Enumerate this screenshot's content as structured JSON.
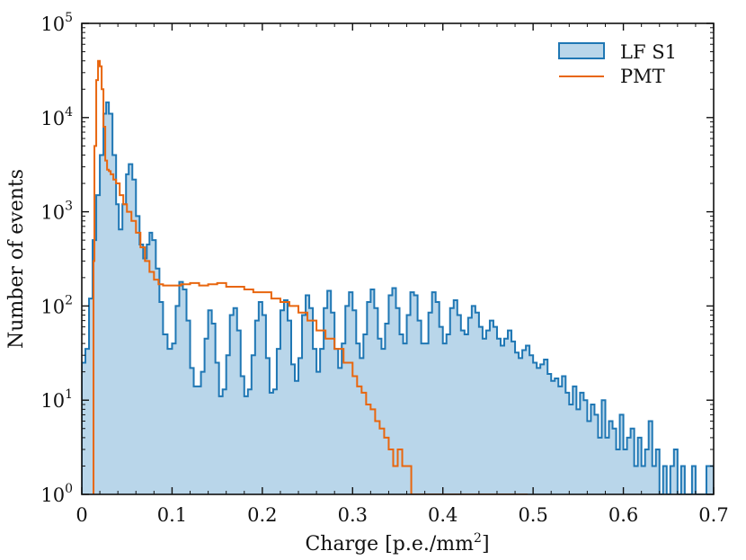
{
  "chart_data": {
    "type": "histogram",
    "title": "",
    "xlabel": "Charge [p.e./mm",
    "xlabel_sup": "2",
    "xlabel_suffix": "]",
    "ylabel": "Number of events",
    "xlim": [
      0,
      0.7
    ],
    "ylim": [
      1,
      100000
    ],
    "yscale": "log",
    "grid": false,
    "legend_position": "top-right",
    "x_ticks": [
      {
        "value": 0,
        "label": "0"
      },
      {
        "value": 0.1,
        "label": "0.1"
      },
      {
        "value": 0.2,
        "label": "0.2"
      },
      {
        "value": 0.3,
        "label": "0.3"
      },
      {
        "value": 0.4,
        "label": "0.4"
      },
      {
        "value": 0.5,
        "label": "0.5"
      },
      {
        "value": 0.6,
        "label": "0.6"
      },
      {
        "value": 0.7,
        "label": "0.7"
      }
    ],
    "y_ticks": [
      {
        "value": 1,
        "base": "10",
        "exp": "0"
      },
      {
        "value": 10,
        "base": "10",
        "exp": "1"
      },
      {
        "value": 100,
        "base": "10",
        "exp": "2"
      },
      {
        "value": 1000,
        "base": "10",
        "exp": "3"
      },
      {
        "value": 10000,
        "base": "10",
        "exp": "4"
      },
      {
        "value": 100000,
        "base": "10",
        "exp": "5"
      }
    ],
    "series": [
      {
        "name": "LF S1",
        "color": "#1f77b4",
        "fill": "#b9d6ea",
        "filled": true,
        "points": [
          [
            0,
            25
          ],
          [
            0.004,
            35
          ],
          [
            0.008,
            120
          ],
          [
            0.012,
            500
          ],
          [
            0.016,
            1500
          ],
          [
            0.02,
            4000
          ],
          [
            0.024,
            11000
          ],
          [
            0.027,
            14500
          ],
          [
            0.03,
            11000
          ],
          [
            0.034,
            4000
          ],
          [
            0.038,
            1200
          ],
          [
            0.041,
            650
          ],
          [
            0.045,
            1200
          ],
          [
            0.049,
            2500
          ],
          [
            0.052,
            3200
          ],
          [
            0.056,
            2200
          ],
          [
            0.06,
            900
          ],
          [
            0.064,
            450
          ],
          [
            0.068,
            320
          ],
          [
            0.072,
            450
          ],
          [
            0.075,
            600
          ],
          [
            0.078,
            500
          ],
          [
            0.082,
            250
          ],
          [
            0.086,
            110
          ],
          [
            0.09,
            50
          ],
          [
            0.095,
            35
          ],
          [
            0.1,
            40
          ],
          [
            0.104,
            100
          ],
          [
            0.108,
            180
          ],
          [
            0.112,
            150
          ],
          [
            0.116,
            70
          ],
          [
            0.12,
            22
          ],
          [
            0.124,
            14
          ],
          [
            0.128,
            14
          ],
          [
            0.132,
            20
          ],
          [
            0.136,
            45
          ],
          [
            0.14,
            90
          ],
          [
            0.144,
            65
          ],
          [
            0.148,
            25
          ],
          [
            0.152,
            11
          ],
          [
            0.156,
            13
          ],
          [
            0.16,
            30
          ],
          [
            0.164,
            80
          ],
          [
            0.168,
            95
          ],
          [
            0.172,
            55
          ],
          [
            0.176,
            18
          ],
          [
            0.18,
            11
          ],
          [
            0.184,
            13
          ],
          [
            0.188,
            30
          ],
          [
            0.192,
            70
          ],
          [
            0.196,
            110
          ],
          [
            0.2,
            80
          ],
          [
            0.204,
            28
          ],
          [
            0.208,
            12
          ],
          [
            0.212,
            13
          ],
          [
            0.216,
            35
          ],
          [
            0.22,
            90
          ],
          [
            0.224,
            115
          ],
          [
            0.228,
            70
          ],
          [
            0.232,
            24
          ],
          [
            0.236,
            16
          ],
          [
            0.24,
            28
          ],
          [
            0.244,
            80
          ],
          [
            0.248,
            130
          ],
          [
            0.252,
            95
          ],
          [
            0.256,
            35
          ],
          [
            0.26,
            20
          ],
          [
            0.264,
            35
          ],
          [
            0.268,
            95
          ],
          [
            0.272,
            145
          ],
          [
            0.276,
            85
          ],
          [
            0.28,
            35
          ],
          [
            0.284,
            22
          ],
          [
            0.288,
            40
          ],
          [
            0.292,
            100
          ],
          [
            0.296,
            140
          ],
          [
            0.3,
            90
          ],
          [
            0.304,
            40
          ],
          [
            0.308,
            28
          ],
          [
            0.312,
            50
          ],
          [
            0.316,
            110
          ],
          [
            0.32,
            150
          ],
          [
            0.324,
            95
          ],
          [
            0.328,
            45
          ],
          [
            0.332,
            35
          ],
          [
            0.336,
            65
          ],
          [
            0.34,
            130
          ],
          [
            0.344,
            155
          ],
          [
            0.348,
            95
          ],
          [
            0.352,
            50
          ],
          [
            0.356,
            40
          ],
          [
            0.36,
            80
          ],
          [
            0.364,
            140
          ],
          [
            0.368,
            130
          ],
          [
            0.372,
            70
          ],
          [
            0.376,
            40
          ],
          [
            0.38,
            40
          ],
          [
            0.384,
            85
          ],
          [
            0.388,
            140
          ],
          [
            0.392,
            110
          ],
          [
            0.396,
            60
          ],
          [
            0.4,
            40
          ],
          [
            0.404,
            50
          ],
          [
            0.408,
            95
          ],
          [
            0.412,
            115
          ],
          [
            0.416,
            80
          ],
          [
            0.42,
            55
          ],
          [
            0.424,
            50
          ],
          [
            0.428,
            75
          ],
          [
            0.432,
            100
          ],
          [
            0.436,
            85
          ],
          [
            0.44,
            60
          ],
          [
            0.444,
            45
          ],
          [
            0.448,
            55
          ],
          [
            0.452,
            70
          ],
          [
            0.456,
            60
          ],
          [
            0.46,
            45
          ],
          [
            0.464,
            38
          ],
          [
            0.468,
            45
          ],
          [
            0.472,
            55
          ],
          [
            0.476,
            42
          ],
          [
            0.48,
            32
          ],
          [
            0.484,
            28
          ],
          [
            0.488,
            34
          ],
          [
            0.492,
            38
          ],
          [
            0.496,
            30
          ],
          [
            0.5,
            25
          ],
          [
            0.504,
            22
          ],
          [
            0.508,
            24
          ],
          [
            0.512,
            27
          ],
          [
            0.516,
            19
          ],
          [
            0.52,
            16
          ],
          [
            0.524,
            17
          ],
          [
            0.528,
            14
          ],
          [
            0.532,
            18
          ],
          [
            0.536,
            12
          ],
          [
            0.54,
            9
          ],
          [
            0.544,
            14
          ],
          [
            0.548,
            8
          ],
          [
            0.552,
            12
          ],
          [
            0.556,
            10
          ],
          [
            0.56,
            6
          ],
          [
            0.564,
            9
          ],
          [
            0.568,
            7
          ],
          [
            0.572,
            4
          ],
          [
            0.576,
            10
          ],
          [
            0.58,
            4
          ],
          [
            0.584,
            6
          ],
          [
            0.588,
            5
          ],
          [
            0.592,
            3
          ],
          [
            0.596,
            7
          ],
          [
            0.6,
            3
          ],
          [
            0.604,
            4
          ],
          [
            0.608,
            5
          ],
          [
            0.612,
            2
          ],
          [
            0.616,
            4
          ],
          [
            0.62,
            2
          ],
          [
            0.624,
            3
          ],
          [
            0.628,
            6
          ],
          [
            0.632,
            2
          ],
          [
            0.636,
            3
          ],
          [
            0.64,
            1
          ],
          [
            0.644,
            2
          ],
          [
            0.648,
            1
          ],
          [
            0.652,
            2
          ],
          [
            0.656,
            3
          ],
          [
            0.66,
            1
          ],
          [
            0.664,
            2
          ],
          [
            0.668,
            1
          ],
          [
            0.672,
            1
          ],
          [
            0.676,
            2
          ],
          [
            0.68,
            1
          ],
          [
            0.684,
            1
          ],
          [
            0.688,
            1
          ],
          [
            0.692,
            2
          ],
          [
            0.696,
            2
          ],
          [
            0.7,
            1
          ]
        ]
      },
      {
        "name": "PMT",
        "color": "#e8660e",
        "filled": false,
        "points": [
          [
            0.012,
            1
          ],
          [
            0.013,
            300
          ],
          [
            0.014,
            5000
          ],
          [
            0.016,
            25000
          ],
          [
            0.018,
            40000
          ],
          [
            0.02,
            35000
          ],
          [
            0.022,
            20000
          ],
          [
            0.024,
            8000
          ],
          [
            0.026,
            3500
          ],
          [
            0.028,
            2800
          ],
          [
            0.03,
            2700
          ],
          [
            0.032,
            2500
          ],
          [
            0.035,
            2200
          ],
          [
            0.038,
            2000
          ],
          [
            0.042,
            1500
          ],
          [
            0.046,
            1200
          ],
          [
            0.05,
            1000
          ],
          [
            0.055,
            800
          ],
          [
            0.06,
            600
          ],
          [
            0.065,
            420
          ],
          [
            0.07,
            300
          ],
          [
            0.075,
            230
          ],
          [
            0.08,
            190
          ],
          [
            0.085,
            170
          ],
          [
            0.09,
            165
          ],
          [
            0.1,
            165
          ],
          [
            0.11,
            170
          ],
          [
            0.12,
            175
          ],
          [
            0.13,
            165
          ],
          [
            0.14,
            170
          ],
          [
            0.15,
            175
          ],
          [
            0.16,
            160
          ],
          [
            0.17,
            160
          ],
          [
            0.18,
            150
          ],
          [
            0.19,
            140
          ],
          [
            0.2,
            140
          ],
          [
            0.21,
            120
          ],
          [
            0.22,
            110
          ],
          [
            0.23,
            100
          ],
          [
            0.24,
            85
          ],
          [
            0.25,
            70
          ],
          [
            0.26,
            55
          ],
          [
            0.27,
            45
          ],
          [
            0.28,
            35
          ],
          [
            0.29,
            25
          ],
          [
            0.3,
            18
          ],
          [
            0.305,
            14
          ],
          [
            0.31,
            12
          ],
          [
            0.315,
            9
          ],
          [
            0.32,
            8
          ],
          [
            0.325,
            6
          ],
          [
            0.33,
            5
          ],
          [
            0.335,
            4
          ],
          [
            0.34,
            3
          ],
          [
            0.345,
            2
          ],
          [
            0.35,
            3
          ],
          [
            0.355,
            2
          ],
          [
            0.36,
            2
          ],
          [
            0.365,
            1
          ],
          [
            0.37,
            1
          ],
          [
            0.375,
            1
          ],
          [
            0.38,
            1
          ],
          [
            0.39,
            1
          ],
          [
            0.4,
            1
          ],
          [
            0.41,
            1
          ],
          [
            0.42,
            1
          ],
          [
            0.44,
            1
          ],
          [
            0.46,
            1
          ],
          [
            0.48,
            1
          ],
          [
            0.49,
            1
          ]
        ]
      }
    ]
  }
}
